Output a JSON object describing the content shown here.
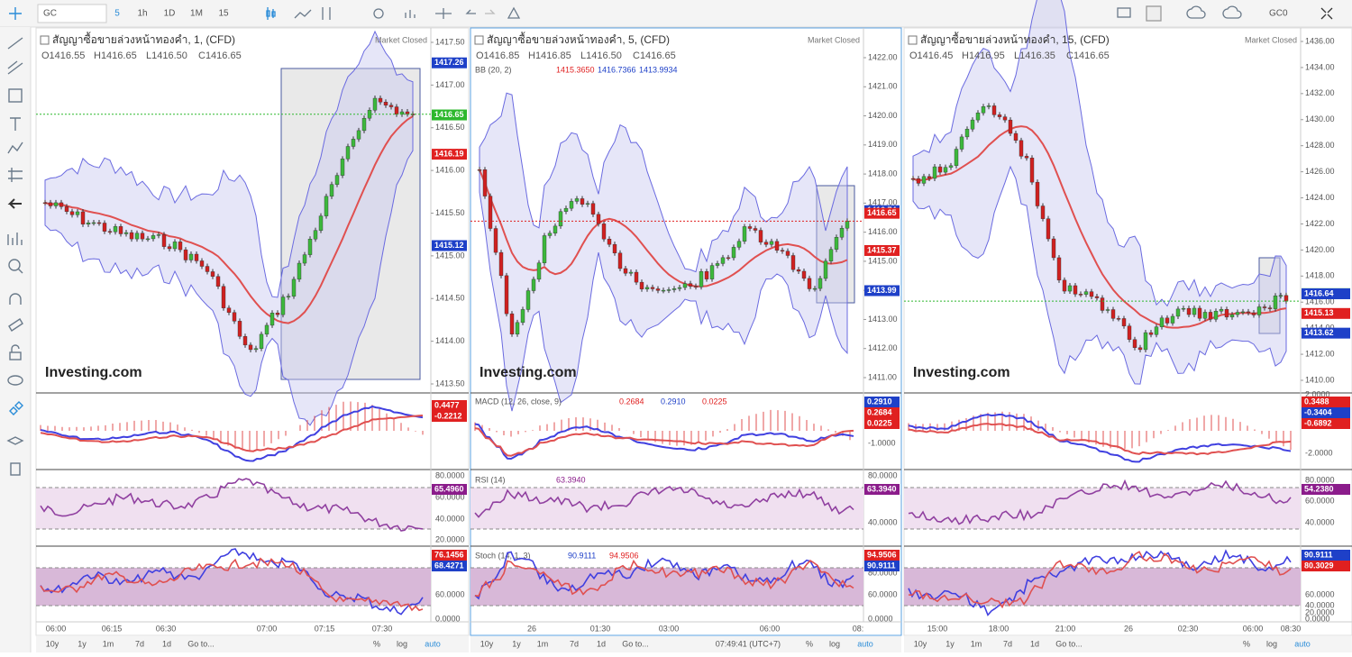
{
  "toolbar": {
    "symbol": "GC",
    "intervals": [
      "5",
      "1h",
      "1D",
      "1M",
      "15"
    ],
    "right_symbol": "GC0"
  },
  "panels": [
    {
      "title": "สัญญาซื้อขายล่วงหน้าทองคำ, 1, (CFD)",
      "status": "Market Closed",
      "ohlc": [
        "O1416.55",
        "H1416.65",
        "L1416.50",
        "C1416.65"
      ],
      "indicators": [],
      "price_ticks": [
        "1417.50",
        "1417.00",
        "1416.50",
        "1416.00",
        "1415.50",
        "1415.00",
        "1414.50",
        "1414.00",
        "1413.50"
      ],
      "price_tags": [
        "1417.26",
        "1416.65",
        "1416.19",
        "1415.12"
      ],
      "macd_ticks": [],
      "macd_tags": [
        "0.4477",
        "-0.2212"
      ],
      "rsi_ticks": [
        "80.0000",
        "60.0000",
        "40.0000",
        "20.0000"
      ],
      "rsi_tags": [
        "65.4960"
      ],
      "stoch_ticks": [
        "60.0000",
        "0.0000"
      ],
      "stoch_tags": [
        "76.1456",
        "68.4271"
      ],
      "times": [
        "06:00",
        "06:15",
        "06:30",
        "07:00",
        "07:15",
        "07:30"
      ],
      "logo": "Investing.com",
      "clock": null
    },
    {
      "title": "สัญญาซื้อขายล่วงหน้าทองคำ, 5, (CFD)",
      "status": "Market Closed",
      "ohlc": [
        "O1416.85",
        "H1416.85",
        "L1416.50",
        "C1416.65"
      ],
      "indicators": [
        {
          "label": "BB (20, 2)",
          "values": [
            "1415.3650",
            "1416.7366",
            "1413.9934"
          ]
        },
        {
          "label": "MACD (12, 26, close, 9)",
          "values": [
            "0.2684",
            "0.2910",
            "0.0225"
          ]
        },
        {
          "label": "RSI (14)",
          "values": [
            "63.3940"
          ]
        },
        {
          "label": "Stoch (14, 1, 3)",
          "values": [
            "90.9111",
            "94.9506"
          ]
        }
      ],
      "price_ticks": [
        "1422.00",
        "1421.00",
        "1420.00",
        "1419.00",
        "1418.00",
        "1417.00",
        "1416.00",
        "1415.00",
        "1414.00",
        "1413.00",
        "1412.00",
        "1411.00"
      ],
      "price_tags": [
        "1416.74",
        "1416.65",
        "1415.37",
        "1413.99"
      ],
      "macd_ticks": [
        "-1.0000"
      ],
      "macd_tags": [
        "0.2910",
        "0.2684",
        "0.0225"
      ],
      "rsi_ticks": [
        "80.0000",
        "40.0000"
      ],
      "rsi_tags": [
        "63.3940"
      ],
      "stoch_ticks": [
        "80.0000",
        "60.0000",
        "0.0000"
      ],
      "stoch_tags": [
        "94.9506",
        "90.9111"
      ],
      "times": [
        "26",
        "01:30",
        "03:00",
        "06:00",
        "08:"
      ],
      "logo": "Investing.com",
      "clock": "07:49:41 (UTC+7)"
    },
    {
      "title": "สัญญาซื้อขายล่วงหน้าทองคำ, 15, (CFD)",
      "status": "Market Closed",
      "ohlc": [
        "O1416.45",
        "H1416.95",
        "L1416.35",
        "C1416.65"
      ],
      "indicators": [],
      "price_ticks": [
        "1436.00",
        "1434.00",
        "1432.00",
        "1430.00",
        "1428.00",
        "1426.00",
        "1424.00",
        "1422.00",
        "1420.00",
        "1418.00",
        "1416.00",
        "1414.00",
        "1412.00",
        "1410.00"
      ],
      "price_tags": [
        "1416.65",
        "1416.64",
        "1415.13",
        "1413.62"
      ],
      "macd_ticks": [
        "2.0000",
        "-2.0000"
      ],
      "macd_tags": [
        "0.3488",
        "-0.3404",
        "-0.6892"
      ],
      "rsi_ticks": [
        "80.0000",
        "60.0000",
        "40.0000"
      ],
      "rsi_tags": [
        "54.2380"
      ],
      "stoch_ticks": [
        "60.0000",
        "40.0000",
        "20.0000",
        "0.0000"
      ],
      "stoch_tags": [
        "90.9111",
        "80.3029"
      ],
      "times": [
        "15:00",
        "18:00",
        "21:00",
        "26",
        "02:30",
        "06:00",
        "08:30"
      ],
      "logo": "Investing.com",
      "clock": null
    }
  ],
  "bottom_left": [
    "10y",
    "1y",
    "1m",
    "7d",
    "1d",
    "Go to..."
  ],
  "bottom_right": [
    "%",
    "log",
    "auto"
  ]
}
